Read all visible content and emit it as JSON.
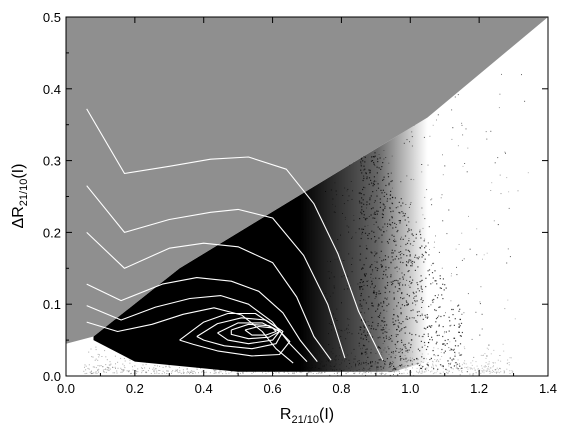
{
  "chart_data": {
    "type": "scatter",
    "title": "",
    "xlabel": "R21/10(I)",
    "ylabel": "ΔR21/10(I)",
    "xlabel_parts": {
      "main": "R",
      "sub": "21/10",
      "suffix": "(I)"
    },
    "ylabel_parts": {
      "main": "ΔR",
      "sub": "21/10",
      "suffix": "(I)"
    },
    "xlim": [
      0.0,
      1.4
    ],
    "ylim": [
      0.0,
      0.5
    ],
    "xticks": [
      "0.0",
      "0.2",
      "0.4",
      "0.6",
      "0.8",
      "1.0",
      "1.2",
      "1.4"
    ],
    "yticks": [
      "0.0",
      "0.1",
      "0.2",
      "0.3",
      "0.4",
      "0.5"
    ],
    "grid": false,
    "legend": "none",
    "colors": {
      "excluded_region": "#8f8f8f",
      "dense_points": "#000000",
      "contours": "#ffffff",
      "axes": "#000000",
      "background": "#ffffff"
    },
    "excluded_region_boundary": {
      "note": "gray area above a diagonal boundary line",
      "line_points": [
        [
          0.08,
          0.055
        ],
        [
          0.33,
          0.15
        ],
        [
          1.05,
          0.36
        ],
        [
          1.4,
          0.5
        ]
      ]
    },
    "contours": [
      {
        "level": 1,
        "points": [
          [
            0.06,
            0.372
          ],
          [
            0.17,
            0.282
          ],
          [
            0.3,
            0.292
          ],
          [
            0.42,
            0.302
          ],
          [
            0.53,
            0.305
          ],
          [
            0.64,
            0.288
          ],
          [
            0.72,
            0.24
          ],
          [
            0.79,
            0.17
          ],
          [
            0.85,
            0.09
          ],
          [
            0.92,
            0.022
          ]
        ]
      },
      {
        "level": 2,
        "points": [
          [
            0.06,
            0.265
          ],
          [
            0.17,
            0.2
          ],
          [
            0.3,
            0.218
          ],
          [
            0.42,
            0.228
          ],
          [
            0.5,
            0.232
          ],
          [
            0.6,
            0.22
          ],
          [
            0.69,
            0.168
          ],
          [
            0.76,
            0.1
          ],
          [
            0.81,
            0.025
          ]
        ]
      },
      {
        "level": 3,
        "points": [
          [
            0.06,
            0.2
          ],
          [
            0.17,
            0.15
          ],
          [
            0.3,
            0.178
          ],
          [
            0.4,
            0.185
          ],
          [
            0.5,
            0.18
          ],
          [
            0.6,
            0.158
          ],
          [
            0.67,
            0.11
          ],
          [
            0.72,
            0.055
          ],
          [
            0.77,
            0.022
          ]
        ]
      },
      {
        "level": 4,
        "points": [
          [
            0.06,
            0.128
          ],
          [
            0.16,
            0.105
          ],
          [
            0.28,
            0.128
          ],
          [
            0.38,
            0.137
          ],
          [
            0.48,
            0.132
          ],
          [
            0.56,
            0.118
          ],
          [
            0.63,
            0.088
          ],
          [
            0.68,
            0.05
          ],
          [
            0.73,
            0.02
          ]
        ]
      },
      {
        "level": 5,
        "points": [
          [
            0.06,
            0.098
          ],
          [
            0.16,
            0.078
          ],
          [
            0.26,
            0.096
          ],
          [
            0.36,
            0.108
          ],
          [
            0.45,
            0.112
          ],
          [
            0.53,
            0.1
          ],
          [
            0.6,
            0.075
          ],
          [
            0.65,
            0.045
          ],
          [
            0.7,
            0.02
          ]
        ]
      },
      {
        "level": 6,
        "points": [
          [
            0.06,
            0.075
          ],
          [
            0.15,
            0.062
          ],
          [
            0.25,
            0.072
          ],
          [
            0.34,
            0.086
          ],
          [
            0.43,
            0.095
          ],
          [
            0.51,
            0.085
          ],
          [
            0.57,
            0.062
          ],
          [
            0.61,
            0.038
          ],
          [
            0.66,
            0.018
          ]
        ]
      },
      {
        "level": 7,
        "points": [
          [
            0.33,
            0.05
          ],
          [
            0.4,
            0.075
          ],
          [
            0.47,
            0.087
          ],
          [
            0.55,
            0.087
          ],
          [
            0.61,
            0.068
          ],
          [
            0.65,
            0.048
          ],
          [
            0.62,
            0.03
          ],
          [
            0.54,
            0.028
          ],
          [
            0.44,
            0.035
          ],
          [
            0.37,
            0.044
          ],
          [
            0.33,
            0.05
          ]
        ]
      },
      {
        "level": 8,
        "points": [
          [
            0.38,
            0.055
          ],
          [
            0.44,
            0.073
          ],
          [
            0.51,
            0.081
          ],
          [
            0.58,
            0.078
          ],
          [
            0.63,
            0.062
          ],
          [
            0.61,
            0.045
          ],
          [
            0.54,
            0.038
          ],
          [
            0.46,
            0.042
          ],
          [
            0.4,
            0.05
          ],
          [
            0.38,
            0.055
          ]
        ]
      },
      {
        "level": 9,
        "points": [
          [
            0.44,
            0.06
          ],
          [
            0.5,
            0.074
          ],
          [
            0.57,
            0.074
          ],
          [
            0.62,
            0.062
          ],
          [
            0.6,
            0.05
          ],
          [
            0.53,
            0.045
          ],
          [
            0.47,
            0.05
          ],
          [
            0.44,
            0.06
          ]
        ]
      },
      {
        "level": 10,
        "points": [
          [
            0.48,
            0.064
          ],
          [
            0.53,
            0.072
          ],
          [
            0.59,
            0.07
          ],
          [
            0.62,
            0.062
          ],
          [
            0.59,
            0.054
          ],
          [
            0.53,
            0.052
          ],
          [
            0.48,
            0.058
          ],
          [
            0.48,
            0.064
          ]
        ]
      },
      {
        "level": 11,
        "points": [
          [
            0.52,
            0.064
          ],
          [
            0.56,
            0.069
          ],
          [
            0.6,
            0.067
          ],
          [
            0.61,
            0.062
          ],
          [
            0.58,
            0.057
          ],
          [
            0.54,
            0.057
          ],
          [
            0.52,
            0.064
          ]
        ]
      }
    ]
  }
}
